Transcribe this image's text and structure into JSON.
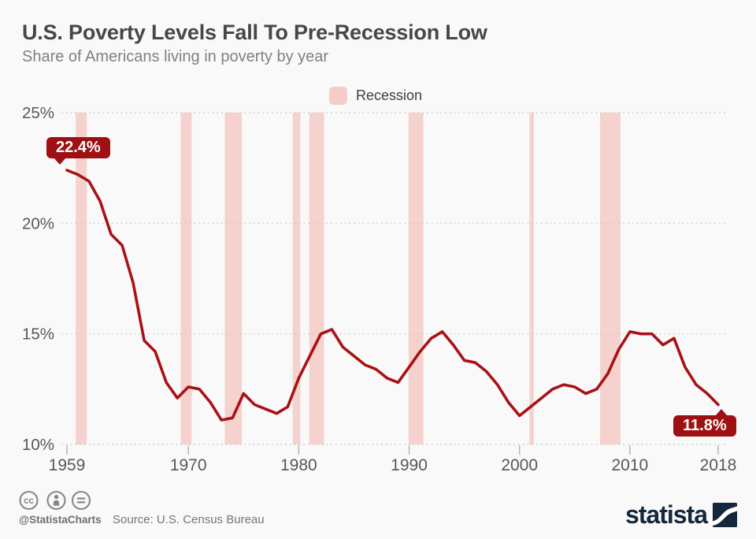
{
  "title": "U.S. Poverty Levels Fall To Pre-Recession Low",
  "subtitle": "Share of Americans living in poverty by year",
  "legend": {
    "label": "Recession",
    "swatch_color": "#f6cdc9"
  },
  "chart_data": {
    "type": "line",
    "title": "U.S. Poverty Levels Fall To Pre-Recession Low",
    "series_name": "Share of Americans living in poverty (%)",
    "x": [
      1959,
      1960,
      1961,
      1962,
      1963,
      1964,
      1965,
      1966,
      1967,
      1968,
      1969,
      1970,
      1971,
      1972,
      1973,
      1974,
      1975,
      1976,
      1977,
      1978,
      1979,
      1980,
      1981,
      1982,
      1983,
      1984,
      1985,
      1986,
      1987,
      1988,
      1989,
      1990,
      1991,
      1992,
      1993,
      1994,
      1995,
      1996,
      1997,
      1998,
      1999,
      2000,
      2001,
      2002,
      2003,
      2004,
      2005,
      2006,
      2007,
      2008,
      2009,
      2010,
      2011,
      2012,
      2013,
      2014,
      2015,
      2016,
      2017,
      2018
    ],
    "values": [
      22.4,
      22.2,
      21.9,
      21.0,
      19.5,
      19.0,
      17.3,
      14.7,
      14.2,
      12.8,
      12.1,
      12.6,
      12.5,
      11.9,
      11.1,
      11.2,
      12.3,
      11.8,
      11.6,
      11.4,
      11.7,
      13.0,
      14.0,
      15.0,
      15.2,
      14.4,
      14.0,
      13.6,
      13.4,
      13.0,
      12.8,
      13.5,
      14.2,
      14.8,
      15.1,
      14.5,
      13.8,
      13.7,
      13.3,
      12.7,
      11.9,
      11.3,
      11.7,
      12.1,
      12.5,
      12.7,
      12.6,
      12.3,
      12.5,
      13.2,
      14.3,
      15.1,
      15.0,
      15.0,
      14.5,
      14.8,
      13.5,
      12.7,
      12.3,
      11.8
    ],
    "xlim": [
      1959,
      2018
    ],
    "ylim": [
      10,
      25
    ],
    "yticks": [
      {
        "value": 25,
        "label": "25%"
      },
      {
        "value": 20,
        "label": "20%"
      },
      {
        "value": 15,
        "label": "15%"
      },
      {
        "value": 10,
        "label": "10%"
      }
    ],
    "xticks": [
      {
        "value": 1959,
        "label": "1959"
      },
      {
        "value": 1970,
        "label": "1970"
      },
      {
        "value": 1980,
        "label": "1980"
      },
      {
        "value": 1990,
        "label": "1990"
      },
      {
        "value": 2000,
        "label": "2000"
      },
      {
        "value": 2010,
        "label": "2010"
      },
      {
        "value": 2018,
        "label": "2018"
      }
    ],
    "grid": "dotted-horizontal",
    "legend_position": "top-center",
    "recession_bands": [
      [
        1959.8,
        1960.8
      ],
      [
        1969.3,
        1970.3
      ],
      [
        1973.3,
        1974.85
      ],
      [
        1979.45,
        1980.15
      ],
      [
        1980.95,
        1982.3
      ],
      [
        1989.95,
        1991.3
      ],
      [
        2000.9,
        2001.3
      ],
      [
        2007.3,
        2009.15
      ]
    ],
    "line_color": "#a81217",
    "band_color": "#f6d2cf",
    "annotations": [
      {
        "text": "22.4%",
        "year": 1959,
        "value": 22.4,
        "position": "above-start"
      },
      {
        "text": "11.8%",
        "year": 2018,
        "value": 11.8,
        "position": "below-end"
      }
    ]
  },
  "footer": {
    "icons": [
      "cc-icon",
      "attribution-icon",
      "equals-icon"
    ],
    "handle": "@StatistaCharts",
    "source": "Source: U.S. Census Bureau",
    "brand": "statista",
    "brand_color": "#15273c"
  }
}
